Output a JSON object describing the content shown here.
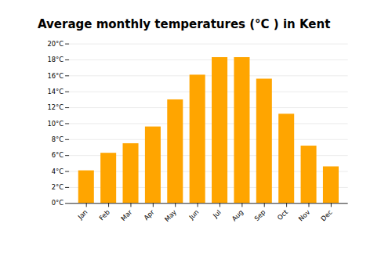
{
  "chart_data": {
    "type": "bar",
    "title": "Average monthly temperatures (°C ) in Kent",
    "categories": [
      "Jan",
      "Feb",
      "Mar",
      "Apr",
      "May",
      "Jun",
      "Jul",
      "Aug",
      "Sep",
      "Oct",
      "Nov",
      "Dec"
    ],
    "values": [
      4.1,
      6.3,
      7.5,
      9.6,
      13.0,
      16.1,
      18.3,
      18.3,
      15.6,
      11.2,
      7.2,
      4.6
    ],
    "color": "#FFA500",
    "ylim": [
      0,
      20
    ],
    "yticks": [
      {
        "value": 0,
        "label": "0°C"
      },
      {
        "value": 2,
        "label": "2°C"
      },
      {
        "value": 4,
        "label": "4°C"
      },
      {
        "value": 6,
        "label": "6°C"
      },
      {
        "value": 8,
        "label": "8°C"
      },
      {
        "value": 10,
        "label": "10°C"
      },
      {
        "value": 12,
        "label": "12°C"
      },
      {
        "value": 14,
        "label": "14°C"
      },
      {
        "value": 16,
        "label": "16°C"
      },
      {
        "value": 18,
        "label": "18°C"
      },
      {
        "value": 20,
        "label": "20°C"
      }
    ],
    "grid": true
  }
}
